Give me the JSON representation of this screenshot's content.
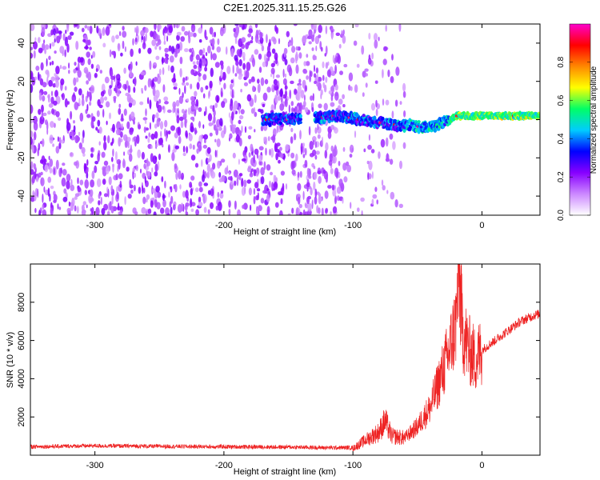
{
  "title": "C2E1.2025.311.15.25.G26",
  "chart_data": [
    {
      "type": "heatmap",
      "name": "spectrogram",
      "xlabel": "Height of straight line (km)",
      "ylabel": "Frequency (Hz)",
      "xlim": [
        -350,
        45
      ],
      "ylim": [
        -50,
        50
      ],
      "xticks": [
        -300,
        -200,
        -100,
        0
      ],
      "yticks": [
        -40,
        -20,
        0,
        20,
        40
      ],
      "colorbar": {
        "label": "Normalized spectral amplitude",
        "range": [
          0.0,
          1.0
        ],
        "ticks": [
          0.0,
          0.2,
          0.4,
          0.6,
          0.8
        ],
        "tick_labels": [
          "0.0",
          "0.2",
          "0.4",
          "0.6",
          "0.8"
        ],
        "colors": [
          "#ffffff",
          "#cc88ff",
          "#8800ff",
          "#0000ff",
          "#00ccff",
          "#00ff66",
          "#ffff00",
          "#ff8800",
          "#ff0000",
          "#ff00cc"
        ]
      },
      "ridge": {
        "description": "Signal ridge frequency vs height",
        "x": [
          -170,
          -150,
          -130,
          -110,
          -95,
          -85,
          -75,
          -65,
          -55,
          -45,
          -35,
          -25,
          -20,
          -10,
          0,
          10,
          20,
          30,
          45
        ],
        "y": [
          0,
          0,
          1,
          2,
          0,
          -1,
          -2,
          -3,
          -3,
          -4,
          -3,
          0,
          2,
          2,
          2,
          2,
          2,
          2,
          2
        ]
      }
    },
    {
      "type": "line",
      "name": "snr",
      "xlabel": "Height of straight line (km)",
      "ylabel": "SNR (10 * v/v)",
      "xlim": [
        -350,
        45
      ],
      "ylim": [
        0,
        10000
      ],
      "xticks": [
        -300,
        -200,
        -100,
        0
      ],
      "yticks": [
        2000,
        4000,
        6000,
        8000
      ],
      "series": [
        {
          "name": "SNR",
          "color": "#ee2222",
          "x": [
            -350,
            -300,
            -250,
            -200,
            -150,
            -120,
            -100,
            -90,
            -80,
            -75,
            -70,
            -60,
            -50,
            -40,
            -35,
            -30,
            -25,
            -20,
            -18,
            -15,
            -10,
            -5,
            0,
            10,
            20,
            30,
            40,
            45
          ],
          "y": [
            400,
            450,
            420,
            400,
            380,
            350,
            350,
            800,
            1200,
            1800,
            1000,
            900,
            1500,
            2500,
            3500,
            4500,
            5500,
            7000,
            9800,
            6500,
            5500,
            5000,
            5500,
            6000,
            6500,
            7000,
            7300,
            7400
          ]
        }
      ]
    }
  ]
}
